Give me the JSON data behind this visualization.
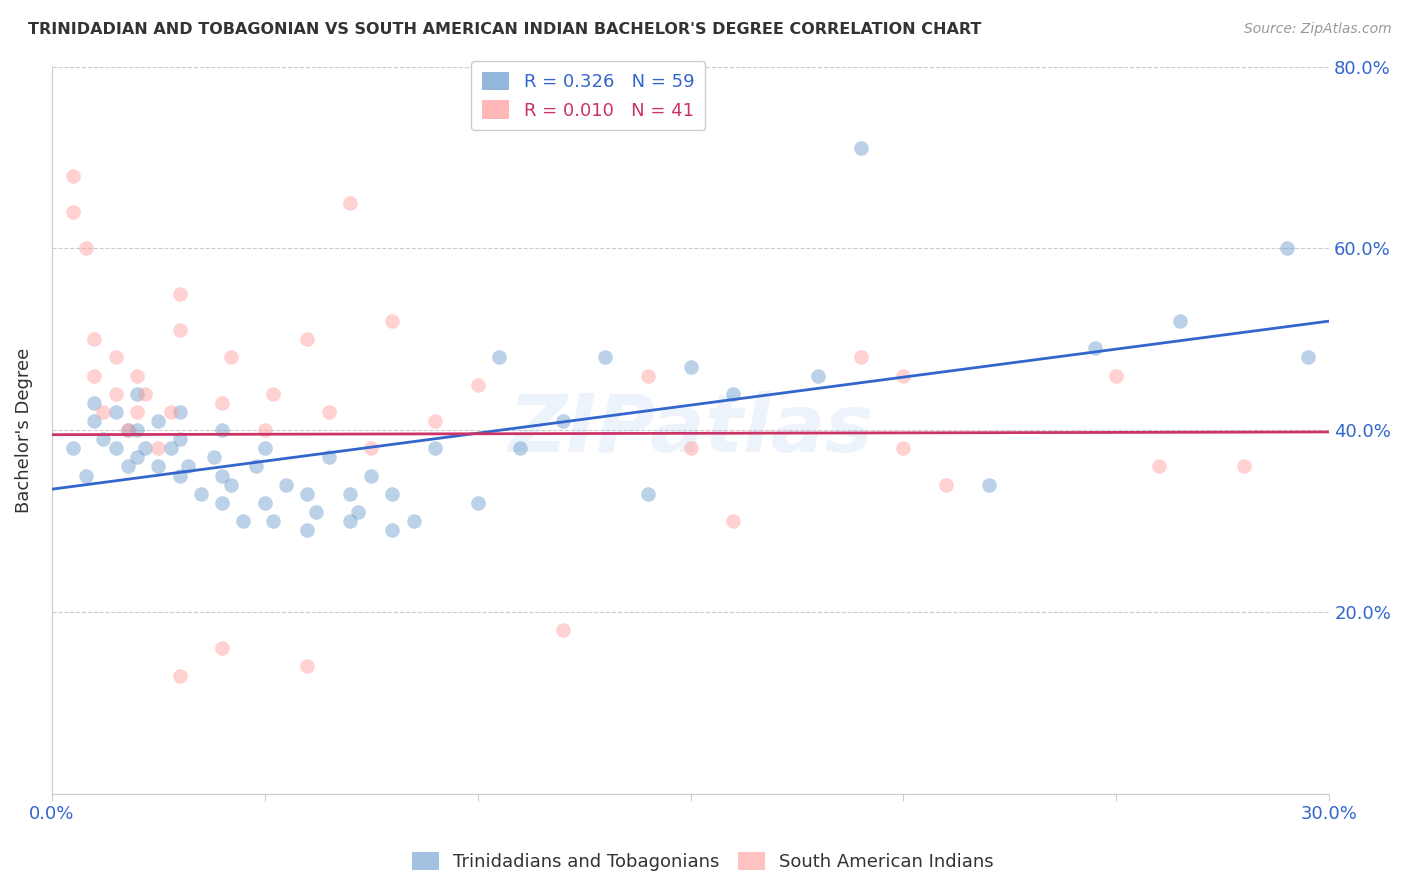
{
  "title": "TRINIDADIAN AND TOBAGONIAN VS SOUTH AMERICAN INDIAN BACHELOR'S DEGREE CORRELATION CHART",
  "source": "Source: ZipAtlas.com",
  "ylabel": "Bachelor's Degree",
  "watermark": "ZIPatlas",
  "xlim": [
    0.0,
    0.3
  ],
  "ylim": [
    0.0,
    0.8
  ],
  "xticks": [
    0.0,
    0.05,
    0.1,
    0.15,
    0.2,
    0.25,
    0.3
  ],
  "yticks": [
    0.0,
    0.2,
    0.4,
    0.6,
    0.8
  ],
  "xtick_labels": [
    "0.0%",
    "",
    "",
    "",
    "",
    "",
    "30.0%"
  ],
  "ytick_labels": [
    "",
    "20.0%",
    "40.0%",
    "60.0%",
    "80.0%"
  ],
  "blue_R": 0.326,
  "blue_N": 59,
  "pink_R": 0.01,
  "pink_N": 41,
  "blue_color": "#6699CC",
  "pink_color": "#FF9999",
  "blue_line_color": "#3366CC",
  "pink_line_color": "#CC3366",
  "legend_label_blue": "Trinidadians and Tobagonians",
  "legend_label_pink": "South American Indians",
  "background_color": "#FFFFFF",
  "grid_color": "#CCCCCC",
  "title_color": "#333333",
  "source_color": "#999999",
  "right_tick_color": "#3366CC",
  "blue_scatter_x": [
    0.005,
    0.008,
    0.01,
    0.01,
    0.012,
    0.015,
    0.015,
    0.018,
    0.018,
    0.02,
    0.02,
    0.02,
    0.022,
    0.025,
    0.025,
    0.028,
    0.03,
    0.03,
    0.03,
    0.032,
    0.035,
    0.038,
    0.04,
    0.04,
    0.04,
    0.042,
    0.045,
    0.048,
    0.05,
    0.05,
    0.052,
    0.055,
    0.06,
    0.06,
    0.062,
    0.065,
    0.07,
    0.07,
    0.072,
    0.075,
    0.08,
    0.08,
    0.085,
    0.09,
    0.1,
    0.105,
    0.11,
    0.12,
    0.13,
    0.14,
    0.15,
    0.16,
    0.18,
    0.19,
    0.22,
    0.245,
    0.265,
    0.29,
    0.295
  ],
  "blue_scatter_y": [
    0.38,
    0.35,
    0.41,
    0.43,
    0.39,
    0.38,
    0.42,
    0.36,
    0.4,
    0.37,
    0.4,
    0.44,
    0.38,
    0.36,
    0.41,
    0.38,
    0.35,
    0.39,
    0.42,
    0.36,
    0.33,
    0.37,
    0.32,
    0.35,
    0.4,
    0.34,
    0.3,
    0.36,
    0.32,
    0.38,
    0.3,
    0.34,
    0.29,
    0.33,
    0.31,
    0.37,
    0.3,
    0.33,
    0.31,
    0.35,
    0.29,
    0.33,
    0.3,
    0.38,
    0.32,
    0.48,
    0.38,
    0.41,
    0.48,
    0.33,
    0.47,
    0.44,
    0.46,
    0.71,
    0.34,
    0.49,
    0.52,
    0.6,
    0.48
  ],
  "pink_scatter_x": [
    0.005,
    0.005,
    0.008,
    0.01,
    0.01,
    0.012,
    0.015,
    0.015,
    0.018,
    0.02,
    0.02,
    0.022,
    0.025,
    0.028,
    0.03,
    0.03,
    0.04,
    0.042,
    0.05,
    0.052,
    0.06,
    0.065,
    0.07,
    0.075,
    0.08,
    0.09,
    0.1,
    0.12,
    0.14,
    0.15,
    0.16,
    0.19,
    0.2,
    0.2,
    0.21,
    0.25,
    0.26,
    0.28,
    0.03,
    0.04,
    0.06
  ],
  "pink_scatter_y": [
    0.68,
    0.64,
    0.6,
    0.46,
    0.5,
    0.42,
    0.44,
    0.48,
    0.4,
    0.42,
    0.46,
    0.44,
    0.38,
    0.42,
    0.51,
    0.55,
    0.43,
    0.48,
    0.4,
    0.44,
    0.5,
    0.42,
    0.65,
    0.38,
    0.52,
    0.41,
    0.45,
    0.18,
    0.46,
    0.38,
    0.3,
    0.48,
    0.38,
    0.46,
    0.34,
    0.46,
    0.36,
    0.36,
    0.13,
    0.16,
    0.14
  ],
  "blue_line_x0": 0.0,
  "blue_line_y0": 0.335,
  "blue_line_x1": 0.3,
  "blue_line_y1": 0.52,
  "pink_line_x0": 0.0,
  "pink_line_y0": 0.395,
  "pink_line_x1": 0.3,
  "pink_line_y1": 0.398
}
